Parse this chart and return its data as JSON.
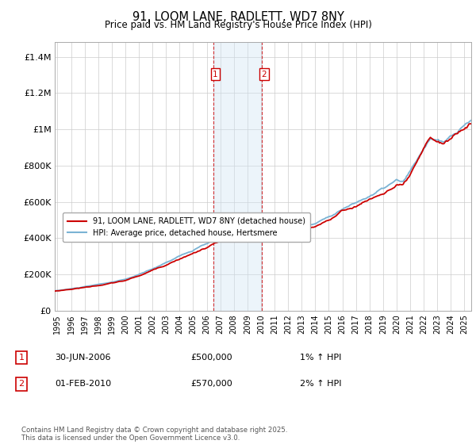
{
  "title": "91, LOOM LANE, RADLETT, WD7 8NY",
  "subtitle": "Price paid vs. HM Land Registry's House Price Index (HPI)",
  "ylabel_ticks": [
    "£0",
    "£200K",
    "£400K",
    "£600K",
    "£800K",
    "£1M",
    "£1.2M",
    "£1.4M"
  ],
  "ytick_values": [
    0,
    200000,
    400000,
    600000,
    800000,
    1000000,
    1200000,
    1400000
  ],
  "ylim": [
    0,
    1480000
  ],
  "xlim_start": 1994.8,
  "xlim_end": 2025.5,
  "purchase1_date": 2006.49,
  "purchase1_price": 500000,
  "purchase1_label": "1",
  "purchase1_text": "30-JUN-2006",
  "purchase1_amount": "£500,000",
  "purchase1_hpi": "1% ↑ HPI",
  "purchase2_date": 2010.08,
  "purchase2_price": 570000,
  "purchase2_label": "2",
  "purchase2_text": "01-FEB-2010",
  "purchase2_amount": "£570,000",
  "purchase2_hpi": "2% ↑ HPI",
  "hpi_line_color": "#7ab3d4",
  "price_line_color": "#cc0000",
  "shade_color": "#d0e4f4",
  "vline_color": "#cc0000",
  "legend_label_price": "91, LOOM LANE, RADLETT, WD7 8NY (detached house)",
  "legend_label_hpi": "HPI: Average price, detached house, Hertsmere",
  "footer_text": "Contains HM Land Registry data © Crown copyright and database right 2025.\nThis data is licensed under the Open Government Licence v3.0.",
  "background_color": "#ffffff",
  "grid_color": "#cccccc"
}
